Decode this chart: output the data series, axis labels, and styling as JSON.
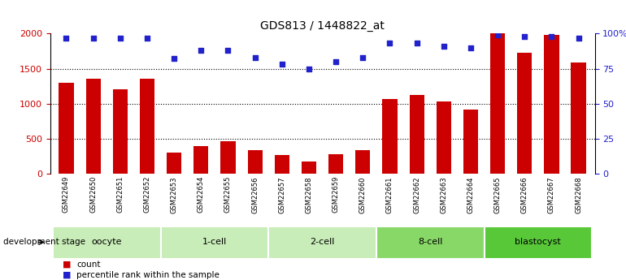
{
  "title": "GDS813 / 1448822_at",
  "samples": [
    "GSM22649",
    "GSM22650",
    "GSM22651",
    "GSM22652",
    "GSM22653",
    "GSM22654",
    "GSM22655",
    "GSM22656",
    "GSM22657",
    "GSM22658",
    "GSM22659",
    "GSM22660",
    "GSM22661",
    "GSM22662",
    "GSM22663",
    "GSM22664",
    "GSM22665",
    "GSM22666",
    "GSM22667",
    "GSM22668"
  ],
  "counts": [
    1300,
    1360,
    1210,
    1360,
    300,
    390,
    460,
    340,
    270,
    175,
    280,
    340,
    1060,
    1120,
    1030,
    910,
    2000,
    1730,
    1980,
    1590
  ],
  "percentiles": [
    97,
    97,
    97,
    97,
    82,
    88,
    88,
    83,
    78,
    75,
    80,
    83,
    93,
    93,
    91,
    90,
    99,
    98,
    98,
    97
  ],
  "groups": [
    {
      "label": "oocyte",
      "start": 0,
      "end": 4,
      "color": "#c8edb8"
    },
    {
      "label": "1-cell",
      "start": 4,
      "end": 8,
      "color": "#c8edb8"
    },
    {
      "label": "2-cell",
      "start": 8,
      "end": 12,
      "color": "#c8edb8"
    },
    {
      "label": "8-cell",
      "start": 12,
      "end": 16,
      "color": "#88d868"
    },
    {
      "label": "blastocyst",
      "start": 16,
      "end": 20,
      "color": "#58c838"
    }
  ],
  "bar_color": "#cc0000",
  "dot_color": "#2222cc",
  "left_ylim": [
    0,
    2000
  ],
  "right_ylim": [
    0,
    100
  ],
  "left_yticks": [
    0,
    500,
    1000,
    1500,
    2000
  ],
  "right_yticks": [
    0,
    25,
    50,
    75,
    100
  ],
  "right_yticklabels": [
    "0",
    "25",
    "50",
    "75",
    "100%"
  ],
  "grid_values": [
    500,
    1000,
    1500
  ],
  "bg_color": "#ffffff",
  "tick_bg_color": "#c8c8c8",
  "stage_label": "development stage",
  "legend_count": "count",
  "legend_percentile": "percentile rank within the sample"
}
